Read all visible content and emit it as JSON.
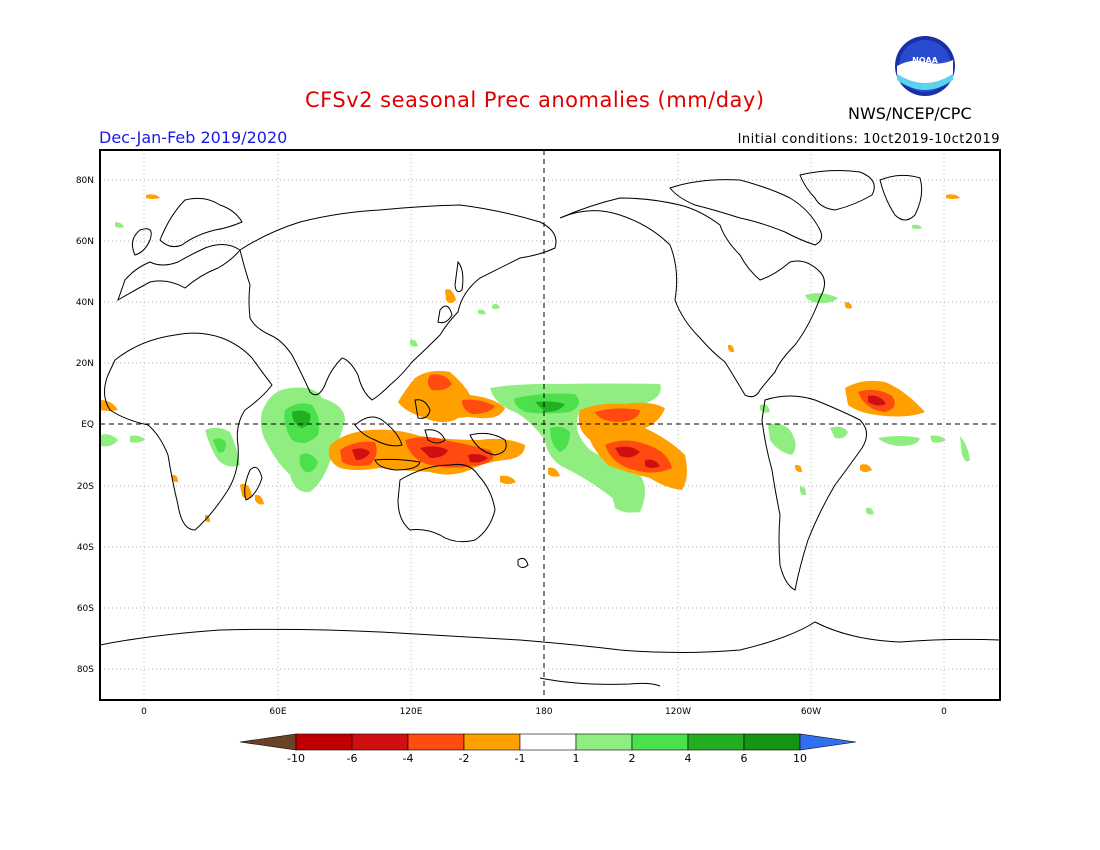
{
  "header": {
    "title": "CFSv2 seasonal Prec anomalies (mm/day)",
    "agency": "NWS/NCEP/CPC",
    "season": "Dec-Jan-Feb 2019/2020",
    "initial_conditions": "Initial conditions: 10ct2019-10ct2019",
    "logo_text": "NOAA"
  },
  "axes": {
    "lat_labels": [
      "80N",
      "60N",
      "40N",
      "20N",
      "EQ",
      "20S",
      "40S",
      "60S",
      "80S"
    ],
    "lon_labels": [
      "0",
      "60E",
      "120E",
      "180",
      "120W",
      "60W",
      "0"
    ]
  },
  "legend": {
    "labels": [
      "-10",
      "-6",
      "-4",
      "-2",
      "-1",
      "1",
      "2",
      "4",
      "6",
      "10"
    ],
    "colors": [
      "#6b4226",
      "#c00000",
      "#d01010",
      "#ff4a10",
      "#ffa000",
      "#ffffff",
      "#90ee80",
      "#4ce04c",
      "#22b022",
      "#149614",
      "#3070f0"
    ]
  },
  "colors": {
    "orange": "#ffa000",
    "red_orange": "#ff4a10",
    "red": "#d01010",
    "light_green": "#90ee80",
    "green": "#4ce04c",
    "dark_green": "#22b022"
  }
}
